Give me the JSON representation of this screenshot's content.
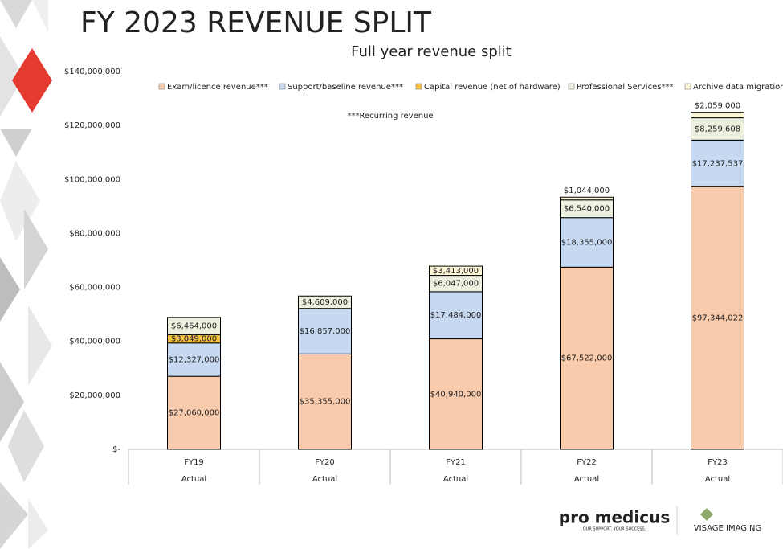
{
  "chart_data": {
    "type": "stacked_bar",
    "title": "FY 2023 REVENUE SPLIT",
    "subtitle": "Full year revenue split",
    "annotation": "***Recurring revenue",
    "categories": [
      "FY19",
      "FY20",
      "FY21",
      "FY22",
      "FY23"
    ],
    "category_sublabels": [
      "Actual",
      "Actual",
      "Actual",
      "Actual",
      "Actual"
    ],
    "ylim": [
      0,
      140000000
    ],
    "yticks": [
      {
        "value": 0,
        "label": "$-"
      },
      {
        "value": 20000000,
        "label": "$20,000,000"
      },
      {
        "value": 40000000,
        "label": "$40,000,000"
      },
      {
        "value": 60000000,
        "label": "$60,000,000"
      },
      {
        "value": 80000000,
        "label": "$80,000,000"
      },
      {
        "value": 100000000,
        "label": "$100,000,000"
      },
      {
        "value": 120000000,
        "label": "$120,000,000"
      },
      {
        "value": 140000000,
        "label": "$140,000,000"
      }
    ],
    "grid": false,
    "legend": "top",
    "series": [
      {
        "name": "Exam/licence revenue***",
        "color": "#f8cbad",
        "values": [
          27060000,
          35355000,
          40940000,
          67522000,
          97344022
        ],
        "value_labels": [
          "$27,060,000",
          "$35,355,000",
          "$40,940,000",
          "$67,522,000",
          "$97,344,022"
        ]
      },
      {
        "name": "Support/baseline revenue***",
        "color": "#c6d9f0",
        "values": [
          12327000,
          16857000,
          17484000,
          18355000,
          17237537
        ],
        "value_labels": [
          "$12,327,000",
          "$16,857,000",
          "$17,484,000",
          "$18,355,000",
          "$17,237,537"
        ]
      },
      {
        "name": "Capital revenue (net of hardware)",
        "color": "#f4c143",
        "values": [
          3049000,
          null,
          null,
          null,
          null
        ],
        "value_labels": [
          "$3,049,000",
          null,
          null,
          null,
          null
        ]
      },
      {
        "name": "Professional Services***",
        "color": "#ebf1de",
        "values": [
          6464000,
          4609000,
          6047000,
          6540000,
          8259608
        ],
        "value_labels": [
          "$6,464,000",
          "$4,609,000",
          "$6,047,000",
          "$6,540,000",
          "$8,259,608"
        ]
      },
      {
        "name": "Archive data migration",
        "color": "#fdf6d6",
        "values": [
          null,
          null,
          3413000,
          1044000,
          2059000
        ],
        "value_labels": [
          null,
          null,
          "$3,413,000",
          "$1,044,000",
          "$2,059,000"
        ]
      }
    ]
  },
  "logos": {
    "promedicus": "pro medicus",
    "tagline": "OUR SUPPORT. YOUR SUCCESS.",
    "visage": "VISAGE IMAGING"
  }
}
